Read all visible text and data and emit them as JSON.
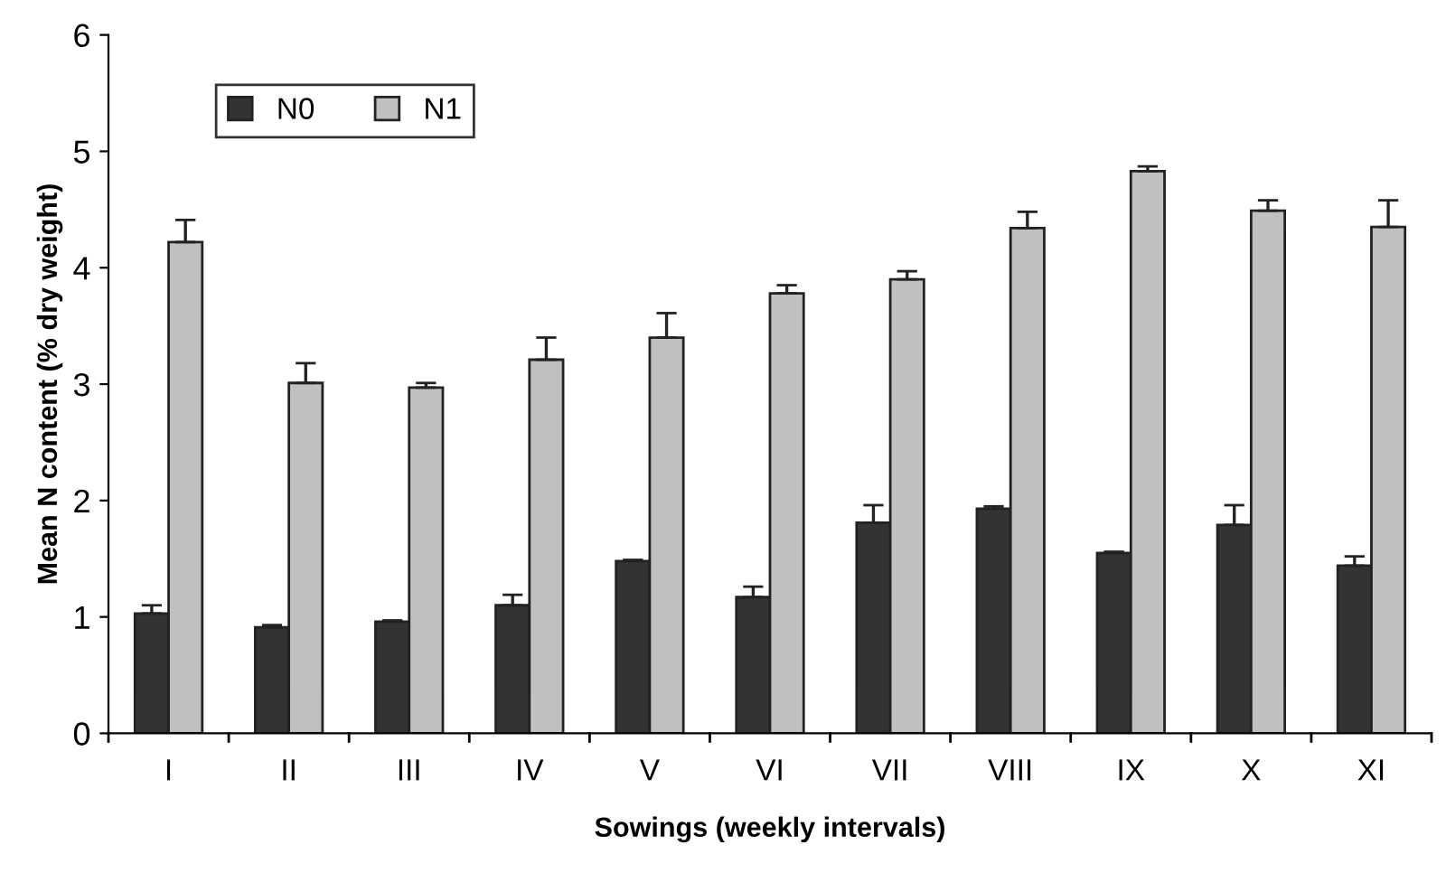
{
  "chart_data": {
    "type": "bar",
    "xlabel": "Sowings (weekly intervals)",
    "ylabel": "Mean N content (% dry weight)",
    "categories": [
      "I",
      "II",
      "III",
      "IV",
      "V",
      "VI",
      "VII",
      "VIII",
      "IX",
      "X",
      "XI"
    ],
    "series": [
      {
        "name": "N0",
        "color": "#333333",
        "values": [
          1.03,
          0.91,
          0.96,
          1.1,
          1.48,
          1.17,
          1.81,
          1.93,
          1.55,
          1.79,
          1.44
        ],
        "errors": [
          [
            1.03,
            1.1
          ],
          [
            0.91,
            0.93
          ],
          [
            0.96,
            0.97
          ],
          [
            1.1,
            1.19
          ],
          [
            1.48,
            1.49
          ],
          [
            1.17,
            1.26
          ],
          [
            1.81,
            1.96
          ],
          [
            1.93,
            1.95
          ],
          [
            1.55,
            1.56
          ],
          [
            1.79,
            1.96
          ],
          [
            1.44,
            1.52
          ]
        ]
      },
      {
        "name": "N1",
        "color": "#c0c0c0",
        "values": [
          4.22,
          3.01,
          2.97,
          3.21,
          3.4,
          3.78,
          3.9,
          4.34,
          4.83,
          4.49,
          4.35
        ],
        "errors": [
          [
            4.22,
            4.41
          ],
          [
            3.01,
            3.18
          ],
          [
            2.97,
            3.01
          ],
          [
            3.21,
            3.4
          ],
          [
            3.4,
            3.61
          ],
          [
            3.78,
            3.85
          ],
          [
            3.9,
            3.97
          ],
          [
            4.34,
            4.48
          ],
          [
            4.83,
            4.87
          ],
          [
            4.49,
            4.58
          ],
          [
            4.35,
            4.58
          ]
        ]
      }
    ],
    "ylim": [
      0,
      6
    ],
    "yticks": [
      0,
      1,
      2,
      3,
      4,
      5,
      6
    ],
    "grid": false,
    "legend": "top left"
  }
}
